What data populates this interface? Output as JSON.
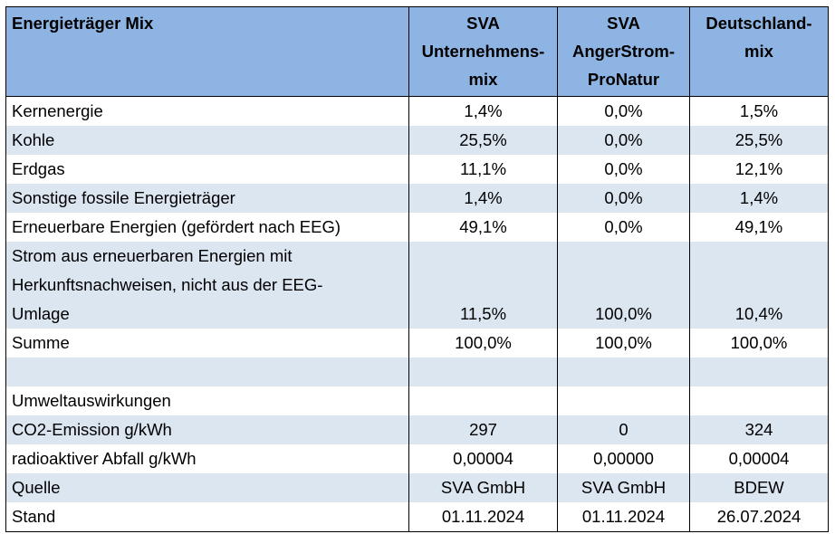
{
  "header": {
    "col0": "Energieträger Mix",
    "col1": [
      "SVA",
      "Unternehmens-",
      "mix"
    ],
    "col2": [
      "SVA",
      "AngerStrom-",
      "ProNatur"
    ],
    "col3": [
      "Deutschland-",
      "mix"
    ]
  },
  "rows": [
    {
      "label": "Kernenergie",
      "values": [
        "1,4%",
        "0,0%",
        "1,5%"
      ]
    },
    {
      "label": "Kohle",
      "values": [
        "25,5%",
        "0,0%",
        "25,5%"
      ]
    },
    {
      "label": "Erdgas",
      "values": [
        "11,1%",
        "0,0%",
        "12,1%"
      ]
    },
    {
      "label": "Sonstige fossile Energieträger",
      "values": [
        "1,4%",
        "0,0%",
        "1,4%"
      ]
    },
    {
      "label": "Erneuerbare Energien (gefördert nach EEG)",
      "values": [
        "49,1%",
        "0,0%",
        "49,1%"
      ]
    },
    {
      "label_lines": [
        "Strom aus erneuerbaren Energien mit",
        "Herkunftsnachweisen, nicht aus der EEG-",
        "Umlage"
      ],
      "values": [
        "11,5%",
        "100,0%",
        "10,4%"
      ]
    },
    {
      "label": "Summe",
      "values": [
        "100,0%",
        "100,0%",
        "100,0%"
      ]
    },
    {
      "label": "",
      "values": [
        "",
        "",
        ""
      ]
    },
    {
      "label": "Umweltauswirkungen",
      "values": [
        "",
        "",
        ""
      ]
    },
    {
      "label": "CO2-Emission g/kWh",
      "values": [
        "297",
        "0",
        "324"
      ]
    },
    {
      "label": "radioaktiver Abfall g/kWh",
      "values": [
        "0,00004",
        "0,00000",
        "0,00004"
      ]
    },
    {
      "label": "Quelle",
      "values": [
        "SVA GmbH",
        "SVA GmbH",
        "BDEW"
      ]
    },
    {
      "label": "Stand",
      "values": [
        "01.11.2024",
        "01.11.2024",
        "26.07.2024"
      ]
    }
  ],
  "colors": {
    "header": "#8eb4e3",
    "alt_row": "#dce6f1"
  }
}
